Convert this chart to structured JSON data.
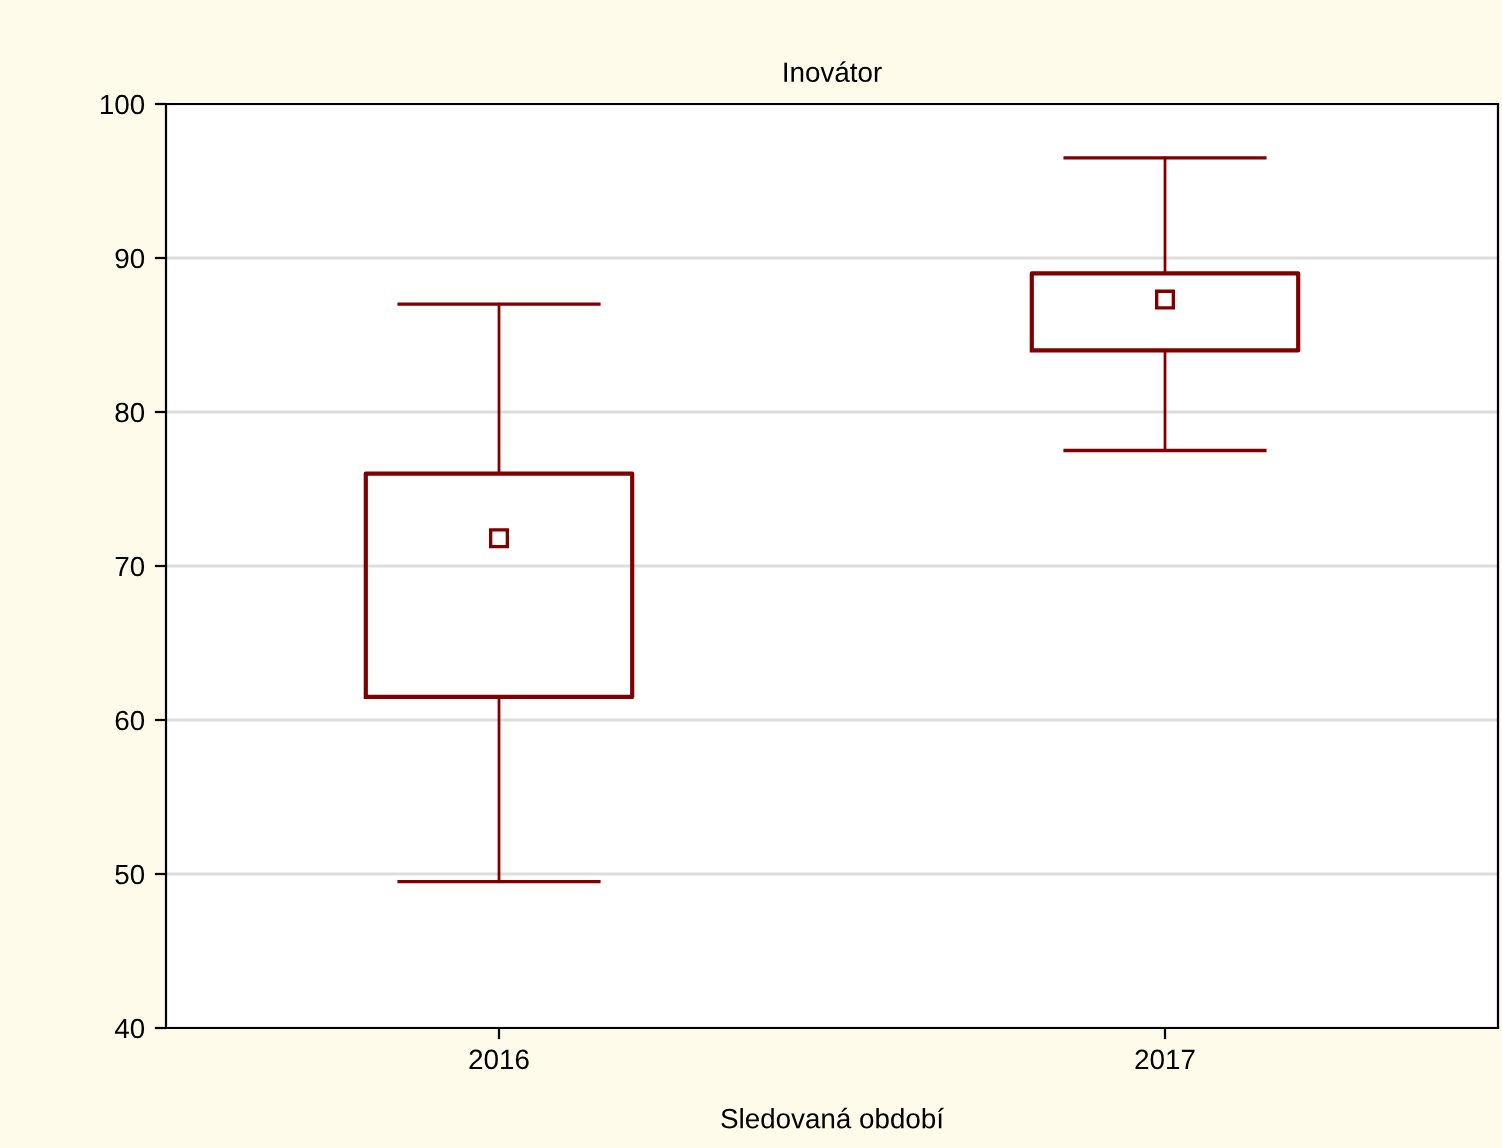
{
  "chart_data": {
    "type": "box",
    "title": "Inovátor",
    "xlabel": "Sledovaná období",
    "categories": [
      "2016",
      "2017"
    ],
    "boxes": [
      {
        "low": 49.5,
        "q1": 61.5,
        "median": 71.8,
        "q3": 76.0,
        "high": 87.0
      },
      {
        "low": 77.5,
        "q1": 84.0,
        "median": 87.3,
        "q3": 89.0,
        "high": 96.5
      }
    ],
    "color": "#800000",
    "marker": "square",
    "ylim": [
      40,
      100
    ],
    "yticks": [
      40,
      50,
      60,
      70,
      80,
      90,
      100
    ],
    "grid": "y"
  }
}
